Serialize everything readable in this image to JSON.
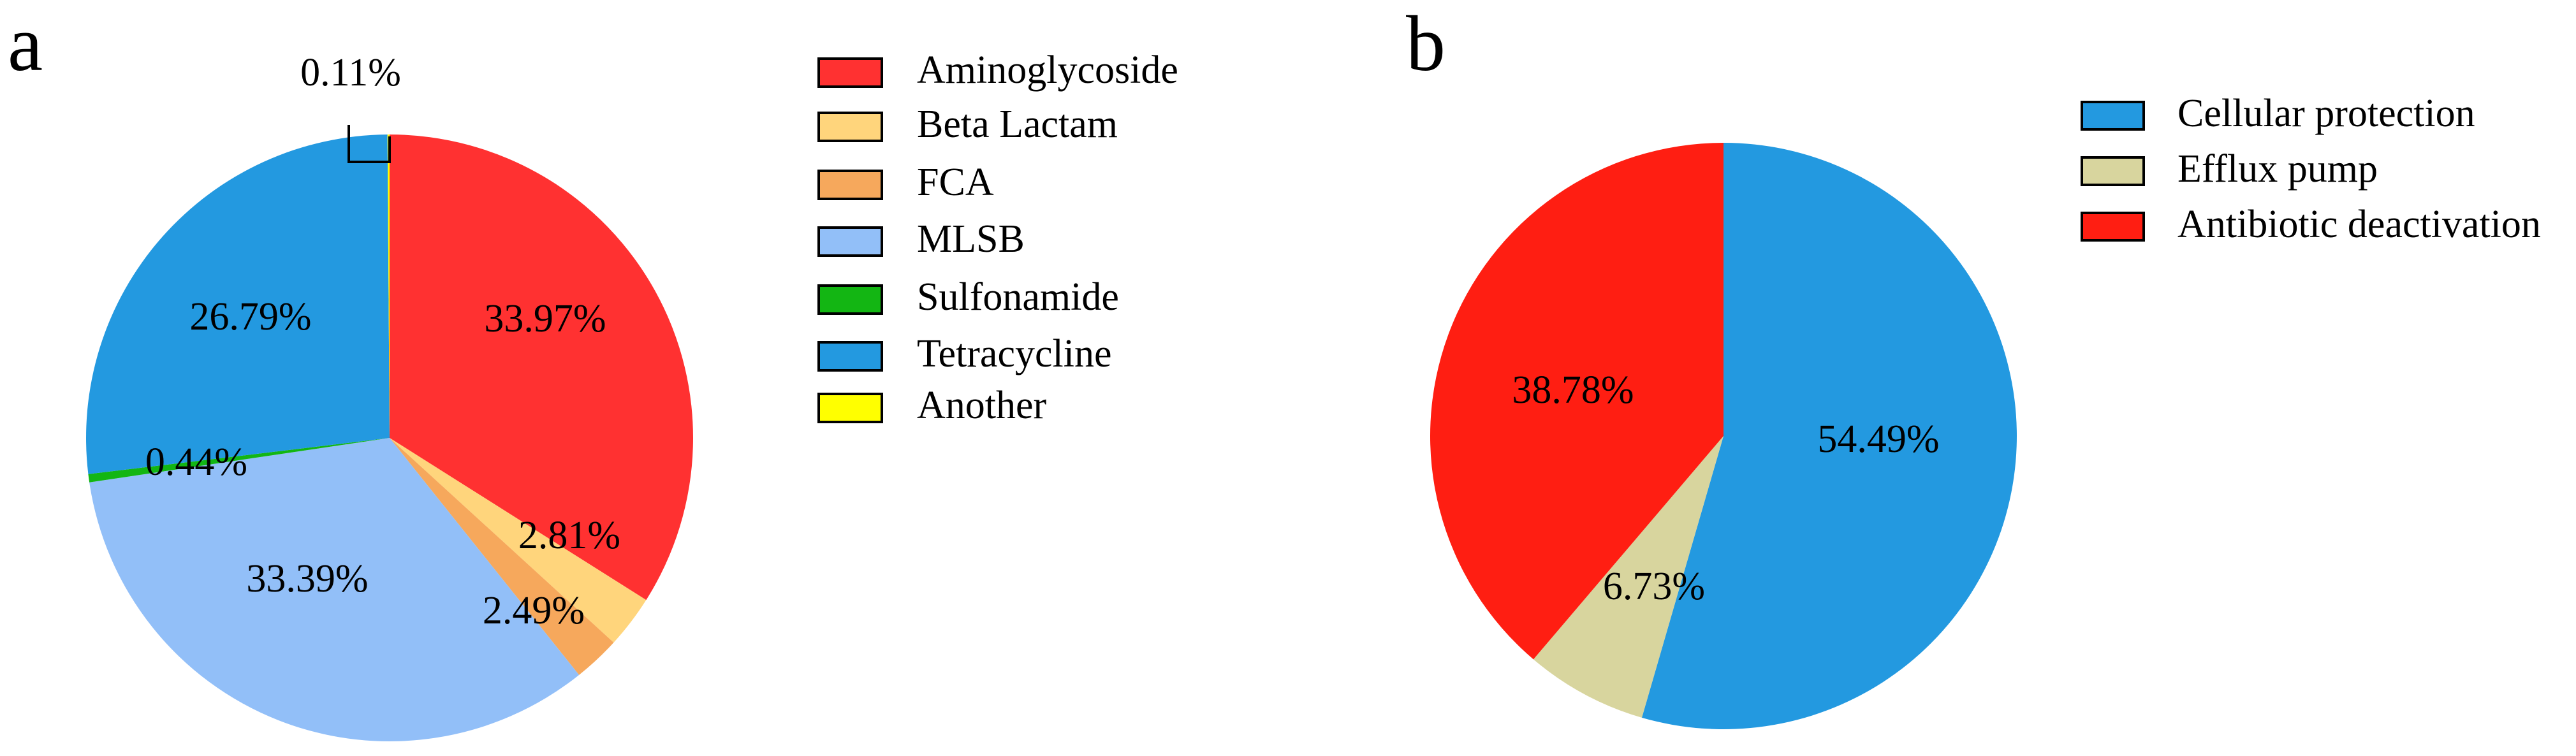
{
  "chart_data": [
    {
      "type": "pie",
      "panel_label": "a",
      "title": "",
      "start": "12 o'clock",
      "direction": "clockwise",
      "legend_position": "right",
      "slices": [
        {
          "label": "Aminoglycoside",
          "value": 33.97,
          "value_label": "33.97%",
          "color": "#FF3131"
        },
        {
          "label": "Beta Lactam",
          "value": 2.81,
          "value_label": "2.81%",
          "color": "#FFD57C"
        },
        {
          "label": "FCA",
          "value": 2.49,
          "value_label": "2.49%",
          "color": "#F6A85C"
        },
        {
          "label": "MLSB",
          "value": 33.39,
          "value_label": "33.39%",
          "color": "#92BFF8"
        },
        {
          "label": "Sulfonamide",
          "value": 0.44,
          "value_label": "0.44%",
          "color": "#13B613"
        },
        {
          "label": "Tetracycline",
          "value": 26.79,
          "value_label": "26.79%",
          "color": "#2399E0"
        },
        {
          "label": "Another",
          "value": 0.11,
          "value_label": "0.11%",
          "color": "#FFFF00"
        }
      ]
    },
    {
      "type": "pie",
      "panel_label": "b",
      "title": "",
      "start": "12 o'clock",
      "direction": "clockwise",
      "legend_position": "right",
      "slices": [
        {
          "label": "Cellular protection",
          "value": 54.49,
          "value_label": "54.49%",
          "color": "#2399E0"
        },
        {
          "label": "Efflux pump",
          "value": 6.73,
          "value_label": "6.73%",
          "color": "#D8D59E"
        },
        {
          "label": "Antibiotic deactivation",
          "value": 38.78,
          "value_label": "38.78%",
          "color": "#FF1E12"
        }
      ]
    }
  ]
}
